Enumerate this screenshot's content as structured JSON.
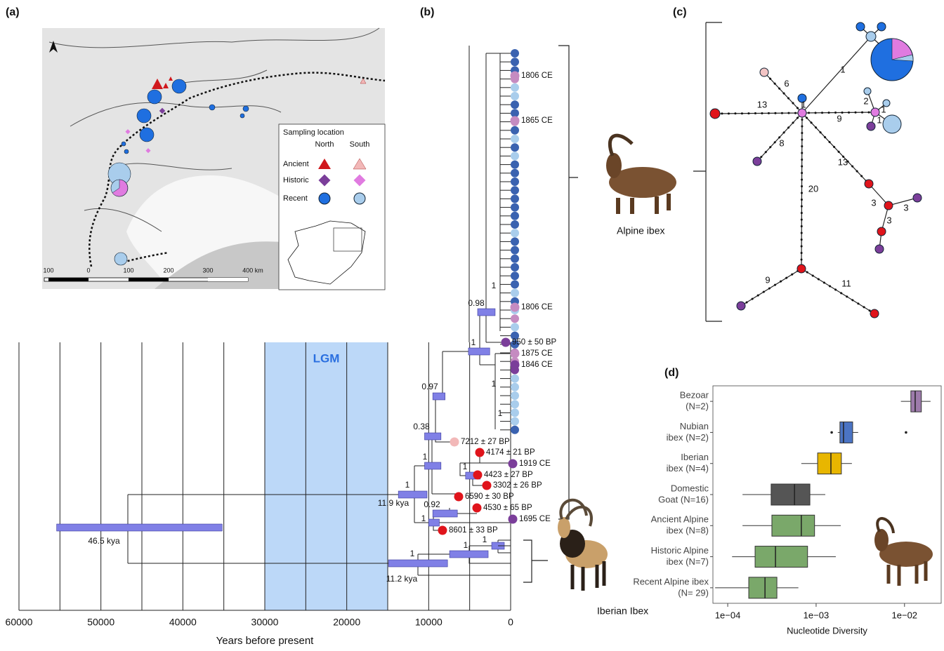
{
  "panel_labels": [
    "(a)",
    "(b)",
    "(c)",
    "(d)"
  ],
  "map": {
    "legend_title": "Sampling location",
    "columns": [
      "North",
      "South"
    ],
    "rows": [
      "Ancient",
      "Historic",
      "Recent"
    ],
    "scale_labels": [
      "100",
      "0",
      "100",
      "200",
      "300",
      "400 km"
    ]
  },
  "tree": {
    "x_label": "Years before present",
    "xlim": [
      60000,
      0
    ],
    "xticks": [
      60000,
      50000,
      40000,
      30000,
      20000,
      10000,
      0
    ],
    "minor_xticks": [
      55000,
      45000,
      35000,
      25000,
      15000,
      5000
    ],
    "lgm": {
      "label": "LGM",
      "range": [
        30000,
        15000
      ],
      "color": "#bcd8f8"
    },
    "hpd_color": "#8080e6",
    "bars": [
      {
        "range": [
          55400,
          35200
        ],
        "age": "46.5 kya"
      },
      {
        "range": [
          13700,
          10200
        ],
        "label": "1",
        "age": "11.9 kya"
      },
      {
        "range": [
          14900,
          7700
        ],
        "label": "1",
        "age": "11.2 kya"
      },
      {
        "range": [
          10000,
          8700
        ],
        "label": "1"
      },
      {
        "range": [
          9500,
          6500
        ],
        "label": "0.92"
      },
      {
        "range": [
          10500,
          8500
        ],
        "label": "1"
      },
      {
        "range": [
          10500,
          8500
        ],
        "label": "0.38"
      },
      {
        "range": [
          9500,
          8000
        ],
        "label": "0.97"
      },
      {
        "range": [
          5500,
          3700
        ],
        "label": "1"
      },
      {
        "range": [
          5150,
          2550
        ],
        "label": "1"
      },
      {
        "range": [
          4030,
          1890
        ],
        "label": "0.98"
      },
      {
        "range": [
          7450,
          2740
        ],
        "label": "1"
      },
      {
        "range": [
          2310,
          770
        ],
        "label": "1"
      }
    ],
    "node_labels": [
      "1",
      "1",
      "1"
    ],
    "tip_colors": [
      "#3a62b0",
      "#3a62b0",
      "#3a62b0",
      "#c58bc1",
      "#a9cdec",
      "#a9cdec",
      "#3a62b0",
      "#3a62b0",
      "#c58bc1",
      "#3a62b0",
      "#a9cdec",
      "#3a62b0",
      "#a9cdec",
      "#3a62b0",
      "#3a62b0",
      "#3a62b0",
      "#3a62b0",
      "#3a62b0",
      "#3a62b0",
      "#3a62b0",
      "#3a62b0",
      "#a9cdec",
      "#3a62b0",
      "#3a62b0",
      "#3a62b0",
      "#3a62b0",
      "#3a62b0",
      "#3a62b0",
      "#a9cdec",
      "#3a62b0",
      "#a9cdec",
      "#c58bc1",
      "#a9cdec",
      "#3a62b0",
      "#3a62b0",
      "#7b3e9a",
      "#c58bc1",
      "#7b3e9a",
      "#a9cdec",
      "#a9cdec",
      "#a9cdec",
      "#a9cdec",
      "#a9cdec",
      "#a9cdec",
      "#3a62b0"
    ],
    "dated_tips": [
      {
        "label": "1806 CE",
        "color": "#c58bc1"
      },
      {
        "label": "1865 CE",
        "color": "#c58bc1"
      },
      {
        "label": "1806 CE",
        "color": "#c58bc1"
      },
      {
        "label": "950 ± 50 BP",
        "color": "#7b3e9a"
      },
      {
        "label": "1875 CE",
        "color": "#c58bc1"
      },
      {
        "label": "1846 CE",
        "color": "#7b3e9a"
      },
      {
        "label": "7212 ± 27 BP",
        "color": "#f2b8b8"
      },
      {
        "label": "4174 ± 21 BP",
        "color": "#e0141b"
      },
      {
        "label": "1919 CE",
        "color": "#7b3e9a"
      },
      {
        "label": "4423 ± 27 BP",
        "color": "#e0141b"
      },
      {
        "label": "3302 ± 26 BP",
        "color": "#e0141b"
      },
      {
        "label": "6590 ± 30 BP",
        "color": "#e0141b"
      },
      {
        "label": "4530 ± 65 BP",
        "color": "#e0141b"
      },
      {
        "label": "1695 CE",
        "color": "#7b3e9a"
      },
      {
        "label": "8601 ± 33 BP",
        "color": "#e0141b"
      }
    ],
    "species": [
      "Alpine ibex",
      "Iberian Ibex"
    ]
  },
  "network": {
    "edge_labels": [
      "1",
      "6",
      "13",
      "1",
      "9",
      "2",
      "1",
      "1",
      "8",
      "13",
      "3",
      "3",
      "3",
      "20",
      "9",
      "11"
    ]
  },
  "chart_data": {
    "type": "box",
    "x_label": "Nucleotide Diversity",
    "log_x": true,
    "xlim": [
      6.8e-05,
      0.026
    ],
    "xticks": [
      {
        "value": 0.0001,
        "label": "1e−04"
      },
      {
        "value": 0.001,
        "label": "1e−03"
      },
      {
        "value": 0.01,
        "label": "1e−02"
      }
    ],
    "categories": [
      [
        "Bezoar",
        "(N=2)"
      ],
      [
        "Nubian",
        "ibex (N=2)"
      ],
      [
        "Iberian",
        "ibex (N=4)"
      ],
      [
        "Domestic",
        "Goat (N=16)"
      ],
      [
        "Ancient Alpine",
        "ibex (N=8)"
      ],
      [
        "Historic Alpine",
        "ibex (N=7)"
      ],
      [
        "Recent Alpine ibex",
        "(N= 29)"
      ]
    ],
    "colors": [
      "#9d7bab",
      "#4b74c4",
      "#e8b600",
      "#555555",
      "#7aa86a",
      "#7aa86a",
      "#7aa86a"
    ],
    "whisker_low": [
      0.0091,
      0.00176,
      0.00068,
      0.000147,
      0.000147,
      0.000112,
      7.2e-05
    ],
    "q1": [
      0.0118,
      0.00186,
      0.00104,
      0.00031,
      0.000316,
      0.000204,
      0.000173
    ],
    "median": [
      0.0132,
      0.00204,
      0.00147,
      0.00057,
      0.00068,
      0.000347,
      0.000264
    ],
    "q3": [
      0.0155,
      0.00259,
      0.00193,
      0.00085,
      0.00096,
      0.0008,
      0.00036
    ],
    "whisker_high": [
      0.0197,
      0.00299,
      0.00254,
      0.00127,
      0.0019,
      0.00167,
      0.00063
    ],
    "outliers": [
      [],
      [
        0.0015,
        0.0104
      ],
      [],
      [],
      [],
      [],
      []
    ]
  }
}
